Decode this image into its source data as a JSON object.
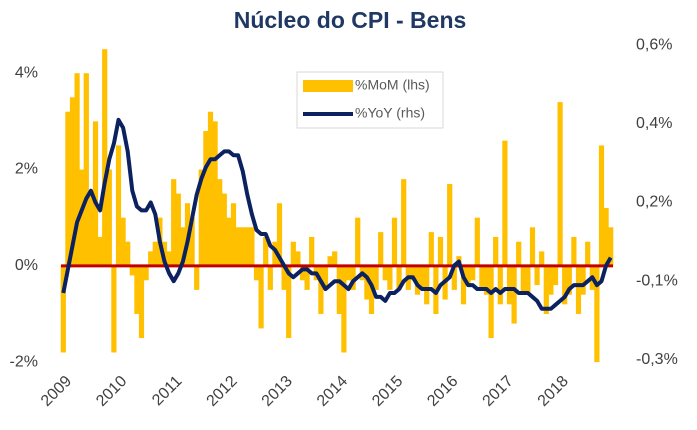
{
  "chart_data": {
    "type": "combo",
    "title": "Núcleo do CPI - Bens",
    "categories": [
      "2009",
      null,
      null,
      null,
      null,
      null,
      null,
      null,
      null,
      null,
      null,
      null,
      "2010",
      null,
      null,
      null,
      null,
      null,
      null,
      null,
      null,
      null,
      null,
      null,
      "2011",
      null,
      null,
      null,
      null,
      null,
      null,
      null,
      null,
      null,
      null,
      null,
      "2012",
      null,
      null,
      null,
      null,
      null,
      null,
      null,
      null,
      null,
      null,
      null,
      "2013",
      null,
      null,
      null,
      null,
      null,
      null,
      null,
      null,
      null,
      null,
      null,
      "2014",
      null,
      null,
      null,
      null,
      null,
      null,
      null,
      null,
      null,
      null,
      null,
      "2015",
      null,
      null,
      null,
      null,
      null,
      null,
      null,
      null,
      null,
      null,
      null,
      "2016",
      null,
      null,
      null,
      null,
      null,
      null,
      null,
      null,
      null,
      null,
      null,
      "2017",
      null,
      null,
      null,
      null,
      null,
      null,
      null,
      null,
      null,
      null,
      null,
      "2018",
      null,
      null,
      null,
      null,
      null,
      null,
      null,
      null,
      null,
      null,
      null
    ],
    "series": [
      {
        "name": "%MoM (lhs)",
        "type": "bar",
        "color": "#FFC000",
        "values": [
          -1.8,
          3.2,
          3.5,
          4.0,
          2.0,
          4.0,
          1.5,
          3.0,
          0.6,
          4.5,
          2.0,
          -1.8,
          2.5,
          1.0,
          0.5,
          -0.2,
          -1.0,
          -1.5,
          -0.3,
          0.3,
          0.5,
          1.0,
          0.5,
          0.3,
          1.8,
          1.5,
          0.8,
          1.3,
          1.0,
          -0.5,
          2.0,
          2.8,
          3.2,
          3.0,
          1.8,
          1.5,
          1.0,
          1.3,
          0.8,
          0.8,
          0.8,
          0.8,
          -0.3,
          -1.3,
          0.6,
          -0.5,
          0.5,
          1.3,
          -0.5,
          -1.5,
          0.5,
          0.3,
          -0.3,
          -0.5,
          0.6,
          -0.3,
          -1.0,
          -0.5,
          0.2,
          0.3,
          -1.0,
          -1.8,
          -0.3,
          -0.5,
          1.0,
          -0.3,
          -0.7,
          -1.0,
          -0.5,
          0.7,
          -0.3,
          -0.5,
          1.0,
          -0.5,
          1.8,
          -0.5,
          -0.3,
          -0.6,
          -0.5,
          -0.8,
          0.7,
          -1.0,
          0.6,
          -0.7,
          1.7,
          -0.5,
          0.2,
          -0.8,
          -0.4,
          -0.3,
          1.0,
          -0.5,
          -0.6,
          -1.5,
          0.6,
          -0.8,
          2.6,
          -0.8,
          -1.2,
          0.5,
          -0.6,
          -0.6,
          0.8,
          -0.4,
          0.3,
          -1.0,
          -0.6,
          -0.4,
          3.4,
          -0.8,
          -0.6,
          0.6,
          -1.0,
          -0.6,
          0.5,
          -0.5,
          -2.0,
          2.5,
          1.2,
          0.8
        ]
      },
      {
        "name": "%YoY (rhs)",
        "type": "line",
        "axis": "y2",
        "color": "#0C2260",
        "values": [
          -0.08,
          -0.02,
          0.04,
          0.1,
          0.13,
          0.16,
          0.18,
          0.15,
          0.13,
          0.2,
          0.26,
          0.3,
          0.36,
          0.34,
          0.28,
          0.18,
          0.14,
          0.13,
          0.13,
          0.15,
          0.12,
          0.05,
          0.0,
          -0.03,
          -0.05,
          -0.03,
          0.0,
          0.05,
          0.11,
          0.17,
          0.21,
          0.24,
          0.26,
          0.26,
          0.27,
          0.28,
          0.28,
          0.27,
          0.27,
          0.23,
          0.17,
          0.12,
          0.08,
          0.07,
          0.07,
          0.04,
          0.03,
          0.01,
          -0.01,
          -0.03,
          -0.04,
          -0.03,
          -0.02,
          -0.02,
          -0.03,
          -0.03,
          -0.05,
          -0.07,
          -0.06,
          -0.05,
          -0.05,
          -0.06,
          -0.07,
          -0.05,
          -0.04,
          -0.03,
          -0.04,
          -0.06,
          -0.09,
          -0.09,
          -0.1,
          -0.08,
          -0.08,
          -0.07,
          -0.05,
          -0.04,
          -0.04,
          -0.06,
          -0.07,
          -0.07,
          -0.07,
          -0.08,
          -0.06,
          -0.05,
          -0.04,
          -0.01,
          0.0,
          -0.04,
          -0.06,
          -0.06,
          -0.07,
          -0.07,
          -0.07,
          -0.08,
          -0.07,
          -0.08,
          -0.07,
          -0.07,
          -0.07,
          -0.08,
          -0.08,
          -0.08,
          -0.09,
          -0.1,
          -0.12,
          -0.12,
          -0.12,
          -0.11,
          -0.1,
          -0.09,
          -0.07,
          -0.06,
          -0.06,
          -0.06,
          -0.05,
          -0.04,
          -0.06,
          -0.05,
          -0.01,
          0.01
        ]
      }
    ],
    "ylim": [
      -2.06,
      4.69
    ],
    "yticks": [
      {
        "value": -2,
        "label": "-2%"
      },
      {
        "value": 0,
        "label": "0%"
      },
      {
        "value": 2,
        "label": "2%"
      },
      {
        "value": 4,
        "label": "4%"
      }
    ],
    "y2lim": [
      -0.263,
      0.563
    ],
    "y2ticks": [
      {
        "value": 0.55,
        "label": "0,6%"
      },
      {
        "value": 0.35,
        "label": "0,4%"
      },
      {
        "value": 0.15,
        "label": "0,2%"
      },
      {
        "value": -0.05,
        "label": "-0,1%"
      },
      {
        "value": -0.25,
        "label": "-0,3%"
      }
    ],
    "zero_line_color": "#C00000"
  }
}
